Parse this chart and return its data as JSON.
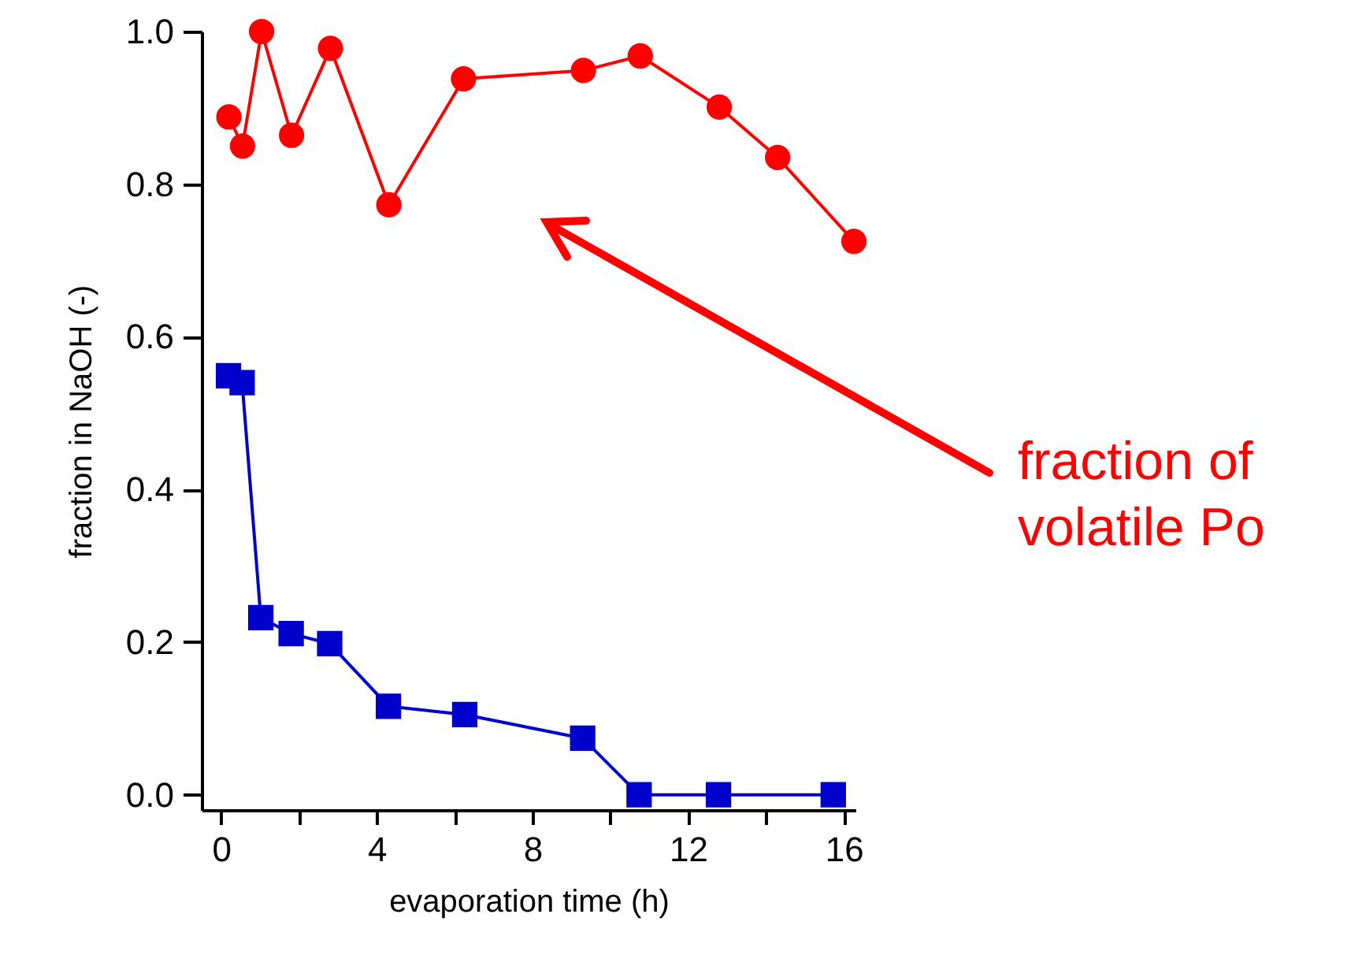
{
  "chart_data": {
    "type": "line",
    "xlabel": "evaporation time (h)",
    "ylabel": "fraction in NaOH (-)",
    "xlim": [
      -0.5,
      16.3
    ],
    "ylim": [
      -0.02,
      1.0
    ],
    "xticks": [
      0,
      {
        "value": 2,
        "label": null
      },
      4,
      {
        "value": 6,
        "label": null
      },
      8,
      {
        "value": 10,
        "label": null
      },
      12,
      {
        "value": 14,
        "label": null
      },
      16
    ],
    "yticks": [
      {
        "value": 0,
        "label": "0.0"
      },
      0.2,
      0.4,
      0.6,
      0.8,
      {
        "value": 1,
        "label": "1.0"
      }
    ],
    "series": [
      {
        "color": "#ff0000",
        "marker": "circle",
        "x": [
          0.2,
          0.55,
          1.04,
          1.81,
          2.81,
          4.31,
          6.23,
          9.31,
          10.77,
          12.8,
          14.3,
          16.26
        ],
        "values": [
          0.888,
          0.85,
          1.0,
          0.864,
          0.978,
          0.773,
          0.938,
          0.949,
          0.968,
          0.901,
          0.835,
          0.725
        ]
      },
      {
        "color": "#0000cc",
        "marker": "square",
        "x": [
          0.19,
          0.54,
          1.02,
          1.8,
          2.79,
          4.3,
          6.26,
          9.29,
          10.74,
          12.78,
          15.73
        ],
        "values": [
          0.549,
          0.54,
          0.232,
          0.211,
          0.198,
          0.116,
          0.105,
          0.074,
          0.0,
          0.0,
          0.0
        ]
      }
    ],
    "annotations": [
      "fraction of\nvolatile Po"
    ]
  }
}
